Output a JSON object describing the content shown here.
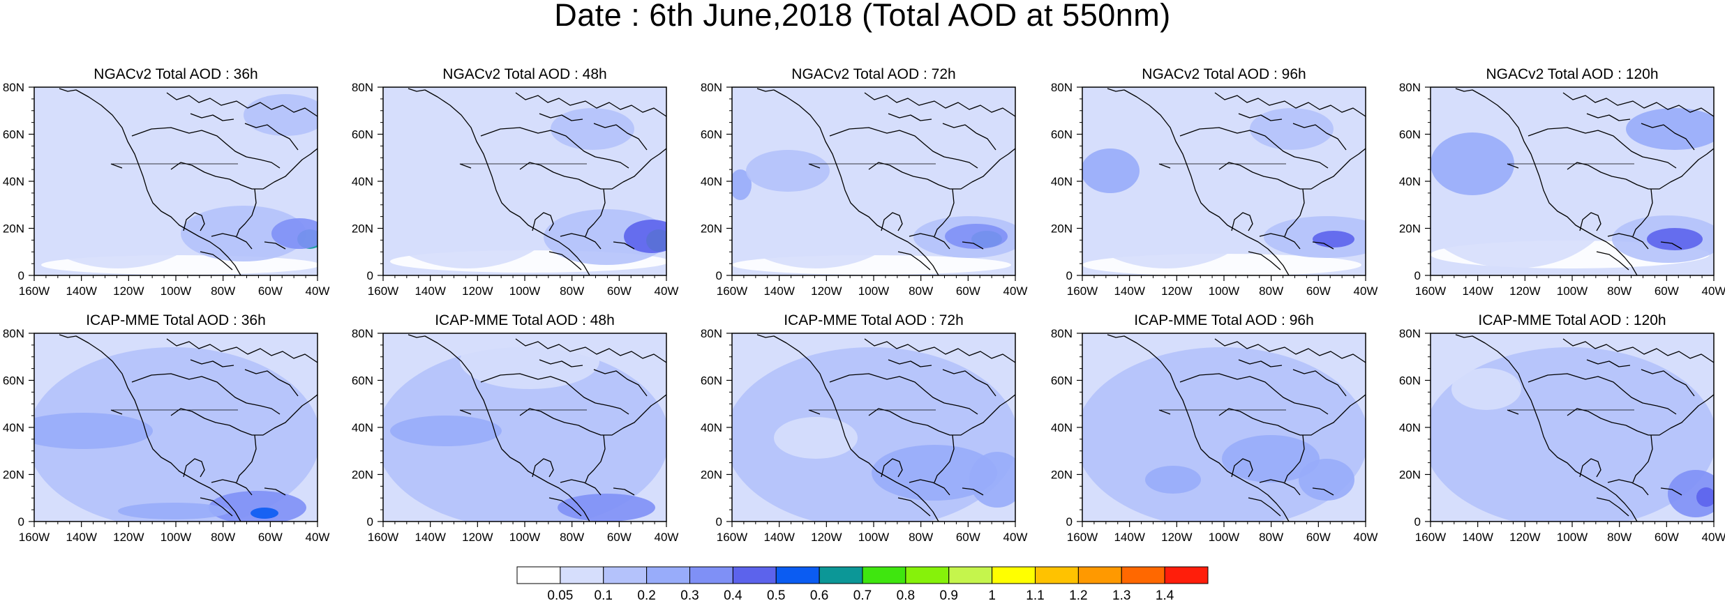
{
  "title": "Date : 6th June,2018 (Total AOD at 550nm)",
  "panels": [
    {
      "title": "NGACv2 Total AOD : 36h"
    },
    {
      "title": "NGACv2 Total AOD : 48h"
    },
    {
      "title": "NGACv2 Total AOD : 72h"
    },
    {
      "title": "NGACv2 Total AOD : 96h"
    },
    {
      "title": "NGACv2 Total AOD : 120h"
    },
    {
      "title": "ICAP-MME Total AOD : 36h"
    },
    {
      "title": "ICAP-MME Total AOD : 48h"
    },
    {
      "title": "ICAP-MME Total AOD : 72h"
    },
    {
      "title": "ICAP-MME Total AOD : 96h"
    },
    {
      "title": "ICAP-MME Total AOD : 120h"
    }
  ],
  "axes": {
    "x_ticks": [
      "160W",
      "140W",
      "120W",
      "100W",
      "80W",
      "60W",
      "40W"
    ],
    "y_ticks": [
      "0",
      "20N",
      "40N",
      "60N",
      "80N"
    ],
    "lon_range": [
      -160,
      -40
    ],
    "lat_range": [
      0,
      80
    ]
  },
  "colorbar": {
    "labels": [
      "0.05",
      "0.1",
      "0.2",
      "0.3",
      "0.4",
      "0.5",
      "0.6",
      "0.7",
      "0.8",
      "0.9",
      "1",
      "1.1",
      "1.2",
      "1.3",
      "1.4"
    ],
    "colors": [
      "#ffffff",
      "#d6defc",
      "#b4c2fb",
      "#98acfa",
      "#7f90f6",
      "#5c63ec",
      "#0b5cf2",
      "#0c9797",
      "#3fe60f",
      "#86f20a",
      "#c5f54c",
      "#ffff00",
      "#ffc200",
      "#ff9900",
      "#ff6800",
      "#ff1e0b"
    ]
  }
}
